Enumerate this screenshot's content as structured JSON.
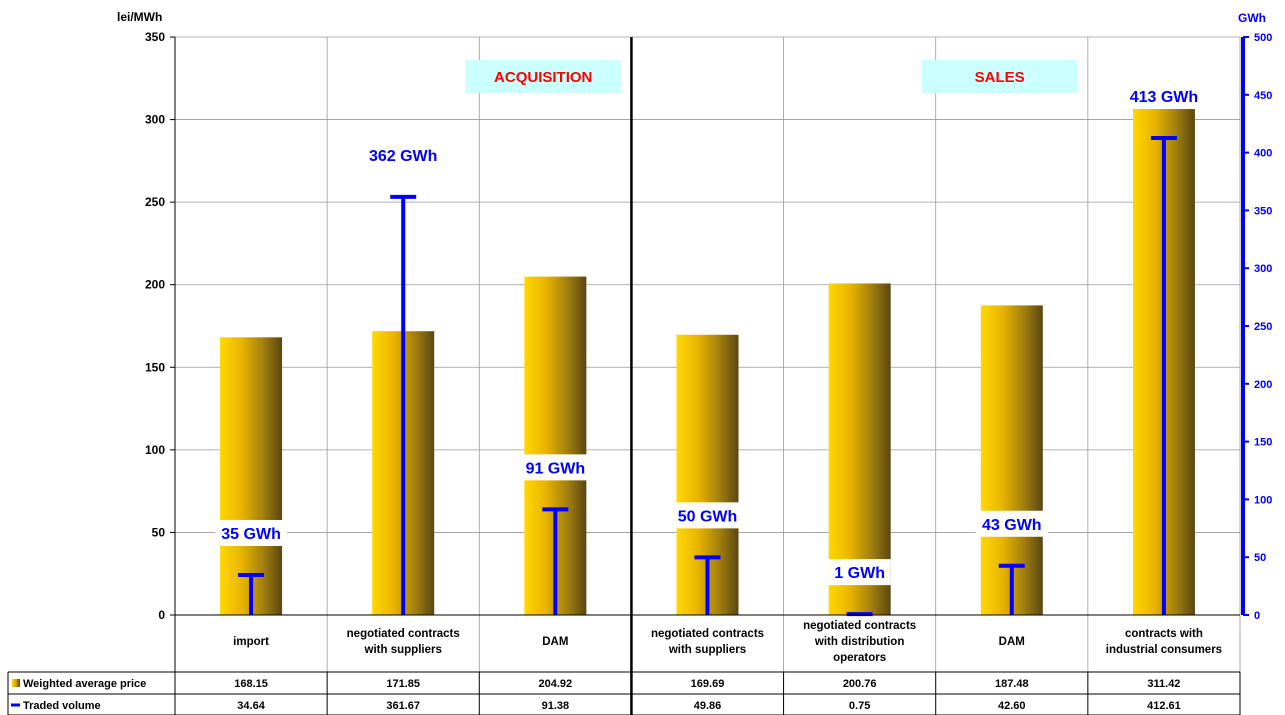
{
  "chart_data": {
    "type": "bar",
    "left_axis_unit": "lei/MWh",
    "right_axis_unit": "GWh",
    "ylim_left": [
      0,
      350
    ],
    "ylim_right": [
      0,
      500
    ],
    "left_ticks": [
      "0",
      "50",
      "100",
      "150",
      "200",
      "250",
      "300",
      "350"
    ],
    "right_ticks": [
      "0",
      "50",
      "100",
      "150",
      "200",
      "250",
      "300",
      "350",
      "400",
      "450",
      "500"
    ],
    "group_labels": [
      "ACQUISITION",
      "SALES"
    ],
    "categories": [
      [
        "import"
      ],
      [
        "negotiated contracts",
        "with suppliers"
      ],
      [
        "DAM"
      ],
      [
        "negotiated contracts",
        "with suppliers"
      ],
      [
        "negotiated contracts",
        "with distribution",
        "operators"
      ],
      [
        "DAM"
      ],
      [
        "contracts with",
        "industrial consumers"
      ]
    ],
    "series": [
      {
        "name": "Weighted average price",
        "values": [
          168.15,
          171.85,
          204.92,
          169.69,
          200.76,
          187.48,
          311.42
        ],
        "table_values": [
          "168.15",
          "171.85",
          "204.92",
          "169.69",
          "200.76",
          "187.48",
          "311.42"
        ],
        "color": "#E8B400"
      },
      {
        "name": "Traded volume",
        "values": [
          34.64,
          361.67,
          91.38,
          49.86,
          0.75,
          42.6,
          412.61
        ],
        "table_values": [
          "34.64",
          "361.67",
          "91.38",
          "49.86",
          "0.75",
          "42.60",
          "412.61"
        ],
        "data_labels": [
          "35 GWh",
          "362 GWh",
          "91 GWh",
          "50 GWh",
          "1 GWh",
          "43 GWh",
          "413 GWh"
        ],
        "color": "#0000FF"
      }
    ],
    "grid": true,
    "legend": "table-bottom-left"
  }
}
